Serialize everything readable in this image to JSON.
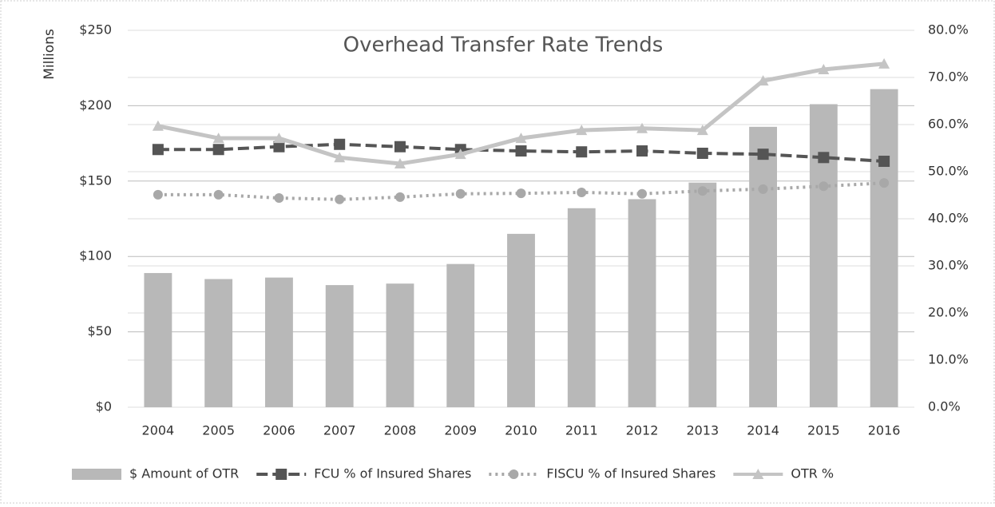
{
  "chart_data": {
    "type": "bar-line",
    "title": "Overhead Transfer Rate Trends",
    "ylabel": "Millions",
    "categories": [
      "2004",
      "2005",
      "2006",
      "2007",
      "2008",
      "2009",
      "2010",
      "2011",
      "2012",
      "2013",
      "2014",
      "2015",
      "2016"
    ],
    "ylim": [
      0,
      250
    ],
    "yticks": [
      {
        "value": 0,
        "label": "$0"
      },
      {
        "value": 50,
        "label": "$50"
      },
      {
        "value": 100,
        "label": "$100"
      },
      {
        "value": 150,
        "label": "$150"
      },
      {
        "value": 200,
        "label": "$200"
      },
      {
        "value": 250,
        "label": "$250"
      }
    ],
    "y2lim": [
      0,
      80
    ],
    "y2ticks": [
      {
        "value": 0,
        "label": "0.0%"
      },
      {
        "value": 10,
        "label": "10.0%"
      },
      {
        "value": 20,
        "label": "20.0%"
      },
      {
        "value": 30,
        "label": "30.0%"
      },
      {
        "value": 40,
        "label": "40.0%"
      },
      {
        "value": 50,
        "label": "50.0%"
      },
      {
        "value": 60,
        "label": "60.0%"
      },
      {
        "value": 70,
        "label": "70.0%"
      },
      {
        "value": 80,
        "label": "80.0%"
      }
    ],
    "grid": true,
    "series": [
      {
        "name": "$ Amount of OTR",
        "type": "bar",
        "color": "#b8b8b8",
        "values": [
          89,
          85,
          86,
          81,
          82,
          95,
          115,
          132,
          138,
          149,
          186,
          201,
          211
        ]
      },
      {
        "name": "FCU % of Insured Shares",
        "type": "line",
        "axis": "y2",
        "color": "#555555",
        "marker": "square",
        "dash": "dashed",
        "values": [
          54.7,
          54.7,
          55.3,
          55.8,
          55.3,
          54.7,
          54.4,
          54.2,
          54.4,
          53.9,
          53.7,
          53.0,
          52.2
        ]
      },
      {
        "name": "FISCU % of Insured Shares",
        "type": "line",
        "axis": "y2",
        "color": "#a8a8a8",
        "marker": "circle",
        "dash": "dotted",
        "values": [
          45.1,
          45.1,
          44.4,
          44.1,
          44.6,
          45.3,
          45.4,
          45.6,
          45.3,
          45.9,
          46.3,
          46.9,
          47.6
        ]
      },
      {
        "name": "OTR %",
        "type": "line",
        "axis": "y2",
        "color": "#c4c4c4",
        "marker": "triangle",
        "dash": "solid",
        "values": [
          59.7,
          57.1,
          57.1,
          53.0,
          51.7,
          53.7,
          57.1,
          58.8,
          59.2,
          58.8,
          69.3,
          71.7,
          72.9
        ]
      }
    ]
  }
}
